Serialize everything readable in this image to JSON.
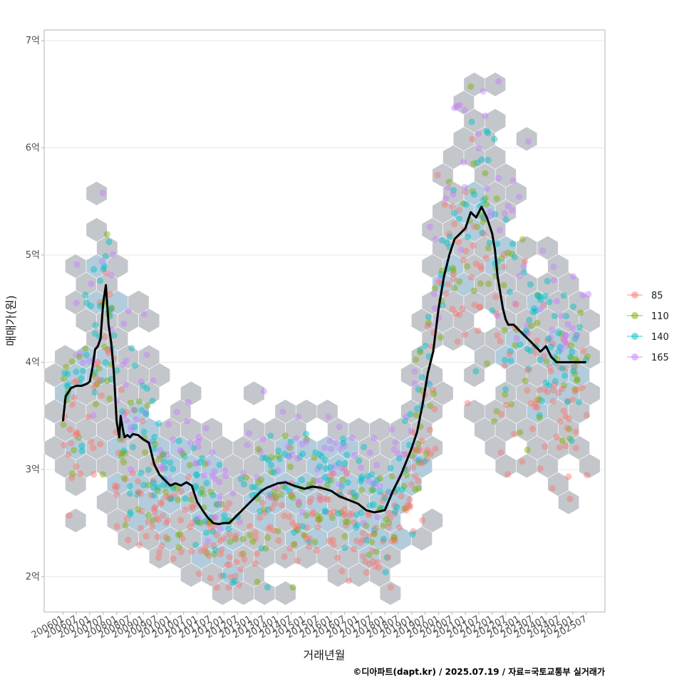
{
  "chart_data": {
    "type": "scatter",
    "title": "",
    "xlabel": "거래년월",
    "ylabel": "매매가(원)",
    "caption": "©디아파트(dapt.kr) / 2025.07.19 / 자료=국토교통부 실거래가",
    "x_tick_labels": [
      "200601",
      "200607",
      "200701",
      "200707",
      "200801",
      "200807",
      "200901",
      "200907",
      "201001",
      "201007",
      "201101",
      "201107",
      "201201",
      "201207",
      "201301",
      "201307",
      "201401",
      "201407",
      "201501",
      "201507",
      "201601",
      "201607",
      "201701",
      "201707",
      "201801",
      "201807",
      "201901",
      "201907",
      "202001",
      "202007",
      "202101",
      "202107",
      "202201",
      "202207",
      "202301",
      "202307",
      "202401",
      "202407",
      "202501",
      "202507"
    ],
    "y_ticks": [
      2,
      3,
      4,
      5,
      6,
      7
    ],
    "y_tick_labels": [
      "2억",
      "3억",
      "4억",
      "5억",
      "6억",
      "7억"
    ],
    "ylim": [
      1.67,
      7.1
    ],
    "xlim": [
      2005.3,
      2026.2
    ],
    "legend_entries": [
      {
        "label": "85",
        "color": "#F8766D"
      },
      {
        "label": "110",
        "color": "#7CAE00"
      },
      {
        "label": "140",
        "color": "#00BFC4"
      },
      {
        "label": "165",
        "color": "#C77CFF"
      }
    ],
    "trend_line": {
      "name": "moving average price",
      "x": [
        2006.0,
        2006.1,
        2006.3,
        2006.5,
        2006.7,
        2006.9,
        2007.0,
        2007.1,
        2007.2,
        2007.3,
        2007.4,
        2007.5,
        2007.6,
        2007.7,
        2007.8,
        2007.9,
        2008.0,
        2008.1,
        2008.15,
        2008.25,
        2008.3,
        2008.4,
        2008.5,
        2008.6,
        2008.8,
        2009.0,
        2009.2,
        2009.4,
        2009.6,
        2009.8,
        2010.0,
        2010.2,
        2010.4,
        2010.6,
        2010.8,
        2011.0,
        2011.2,
        2011.4,
        2011.6,
        2011.8,
        2012.0,
        2012.2,
        2012.4,
        2012.6,
        2012.8,
        2013.0,
        2013.2,
        2013.4,
        2013.6,
        2013.8,
        2014.0,
        2014.3,
        2014.6,
        2015.0,
        2015.3,
        2015.6,
        2016.0,
        2016.3,
        2016.6,
        2017.0,
        2017.3,
        2017.6,
        2018.0,
        2018.3,
        2018.6,
        2019.0,
        2019.2,
        2019.4,
        2019.6,
        2019.8,
        2020.0,
        2020.2,
        2020.4,
        2020.6,
        2020.8,
        2021.0,
        2021.2,
        2021.4,
        2021.6,
        2021.8,
        2022.0,
        2022.1,
        2022.2,
        2022.3,
        2022.4,
        2022.5,
        2022.6,
        2022.8,
        2023.0,
        2023.2,
        2023.4,
        2023.6,
        2023.8,
        2024.0,
        2024.2,
        2024.4,
        2024.6,
        2024.8,
        2025.0,
        2025.2,
        2025.4,
        2025.5
      ],
      "y": [
        3.45,
        3.68,
        3.76,
        3.78,
        3.78,
        3.8,
        3.82,
        3.95,
        4.12,
        4.15,
        4.22,
        4.55,
        4.72,
        4.35,
        4.18,
        3.9,
        3.45,
        3.3,
        3.5,
        3.35,
        3.3,
        3.32,
        3.3,
        3.33,
        3.32,
        3.28,
        3.25,
        3.05,
        2.95,
        2.9,
        2.85,
        2.87,
        2.85,
        2.88,
        2.85,
        2.7,
        2.62,
        2.55,
        2.5,
        2.49,
        2.5,
        2.5,
        2.55,
        2.6,
        2.65,
        2.7,
        2.75,
        2.8,
        2.83,
        2.85,
        2.87,
        2.88,
        2.85,
        2.82,
        2.84,
        2.83,
        2.8,
        2.75,
        2.72,
        2.68,
        2.62,
        2.6,
        2.62,
        2.8,
        2.95,
        3.2,
        3.35,
        3.6,
        3.9,
        4.1,
        4.5,
        4.8,
        5.0,
        5.15,
        5.2,
        5.25,
        5.4,
        5.35,
        5.45,
        5.35,
        5.2,
        5.05,
        4.8,
        4.65,
        4.5,
        4.4,
        4.35,
        4.35,
        4.3,
        4.25,
        4.2,
        4.15,
        4.1,
        4.15,
        4.05,
        4.0,
        4.0,
        4.0,
        4.0,
        4.0,
        4.0,
        4.0
      ]
    }
  }
}
